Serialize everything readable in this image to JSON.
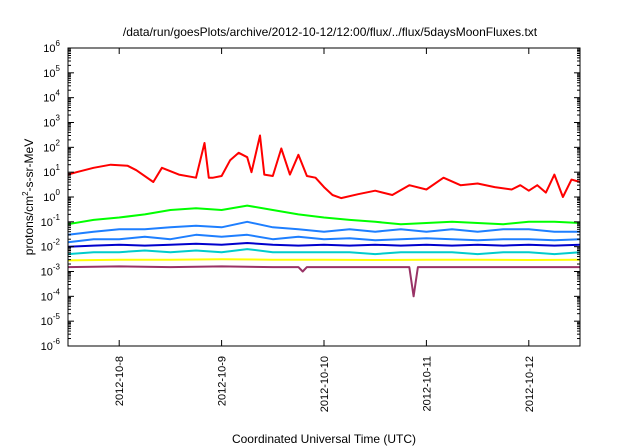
{
  "chart_data": {
    "type": "line",
    "title": "/data/run/goesPlots/archive/2012-10-12/12:00/flux/../flux/5daysMoonFluxes.txt",
    "xlabel": "Coordinated Universal Time (UTC)",
    "ylabel": {
      "base1": "protons/cm",
      "sup1": "2",
      "base2": "-s-sr-MeV"
    },
    "y_scale": "log",
    "ylim": [
      1e-06,
      1000000.0
    ],
    "y_ticks": [
      {
        "value": 1e-06,
        "base": "10",
        "exp": "-6"
      },
      {
        "value": 1e-05,
        "base": "10",
        "exp": "-5"
      },
      {
        "value": 0.0001,
        "base": "10",
        "exp": "-4"
      },
      {
        "value": 0.001,
        "base": "10",
        "exp": "-3"
      },
      {
        "value": 0.01,
        "base": "10",
        "exp": "-2"
      },
      {
        "value": 0.1,
        "base": "10",
        "exp": "-1"
      },
      {
        "value": 1.0,
        "base": "10",
        "exp": "0"
      },
      {
        "value": 10.0,
        "base": "10",
        "exp": "1"
      },
      {
        "value": 100.0,
        "base": "10",
        "exp": "2"
      },
      {
        "value": 1000.0,
        "base": "10",
        "exp": "3"
      },
      {
        "value": 10000.0,
        "base": "10",
        "exp": "4"
      },
      {
        "value": 100000.0,
        "base": "10",
        "exp": "5"
      },
      {
        "value": 1000000.0,
        "base": "10",
        "exp": "6"
      }
    ],
    "xlim": [
      "2012-10-07 12:00",
      "2012-10-12 12:00"
    ],
    "x_ticks": [
      {
        "value": "2012-10-08",
        "label": "2012-10-8"
      },
      {
        "value": "2012-10-09",
        "label": "2012-10-9"
      },
      {
        "value": "2012-10-10",
        "label": "2012-10-10"
      },
      {
        "value": "2012-10-11",
        "label": "2012-10-11"
      },
      {
        "value": "2012-10-12",
        "label": "2012-10-12"
      }
    ],
    "grid": false,
    "legend": "none",
    "series": [
      {
        "color": "#ff0000",
        "width": 2,
        "x": [
          "2012-10-07 12:00",
          "2012-10-07 14:00",
          "2012-10-07 18:00",
          "2012-10-07 22:00",
          "2012-10-08 02:00",
          "2012-10-08 04:00",
          "2012-10-08 08:00",
          "2012-10-08 10:00",
          "2012-10-08 14:00",
          "2012-10-08 18:00",
          "2012-10-08 20:00",
          "2012-10-08 21:00",
          "2012-10-08 22:00",
          "2012-10-09 00:00",
          "2012-10-09 02:00",
          "2012-10-09 04:00",
          "2012-10-09 06:00",
          "2012-10-09 07:00",
          "2012-10-09 09:00",
          "2012-10-09 10:00",
          "2012-10-09 12:00",
          "2012-10-09 14:00",
          "2012-10-09 16:00",
          "2012-10-09 18:00",
          "2012-10-09 20:00",
          "2012-10-09 22:00",
          "2012-10-10 00:00",
          "2012-10-10 02:00",
          "2012-10-10 04:00",
          "2012-10-10 08:00",
          "2012-10-10 12:00",
          "2012-10-10 16:00",
          "2012-10-10 20:00",
          "2012-10-11 00:00",
          "2012-10-11 04:00",
          "2012-10-11 08:00",
          "2012-10-11 12:00",
          "2012-10-11 16:00",
          "2012-10-11 20:00",
          "2012-10-11 22:00",
          "2012-10-12 00:00",
          "2012-10-12 02:00",
          "2012-10-12 04:00",
          "2012-10-12 06:00",
          "2012-10-12 08:00",
          "2012-10-12 10:00",
          "2012-10-12 12:00"
        ],
        "y": [
          8,
          10,
          15,
          20,
          18,
          12,
          4,
          15,
          8,
          6,
          150,
          6,
          6,
          7,
          30,
          60,
          40,
          10,
          300,
          8,
          7,
          90,
          8,
          50,
          7,
          6,
          2.5,
          1.2,
          0.9,
          1.3,
          1.8,
          1.2,
          3,
          2,
          6,
          3,
          3.5,
          2.5,
          2,
          3,
          1.8,
          3,
          1.5,
          8,
          1,
          5,
          4
        ]
      },
      {
        "color": "#00ff00",
        "width": 2,
        "x": [
          "2012-10-07 12:00",
          "2012-10-07 18:00",
          "2012-10-08 00:00",
          "2012-10-08 06:00",
          "2012-10-08 12:00",
          "2012-10-08 18:00",
          "2012-10-09 00:00",
          "2012-10-09 06:00",
          "2012-10-09 12:00",
          "2012-10-09 18:00",
          "2012-10-10 00:00",
          "2012-10-10 06:00",
          "2012-10-10 12:00",
          "2012-10-10 18:00",
          "2012-10-11 00:00",
          "2012-10-11 06:00",
          "2012-10-11 12:00",
          "2012-10-11 18:00",
          "2012-10-12 00:00",
          "2012-10-12 06:00",
          "2012-10-12 12:00"
        ],
        "y": [
          0.08,
          0.12,
          0.15,
          0.2,
          0.3,
          0.35,
          0.3,
          0.45,
          0.3,
          0.2,
          0.15,
          0.12,
          0.1,
          0.08,
          0.09,
          0.1,
          0.09,
          0.08,
          0.1,
          0.1,
          0.09
        ]
      },
      {
        "color": "#1e7fff",
        "width": 2,
        "x": [
          "2012-10-07 12:00",
          "2012-10-07 18:00",
          "2012-10-08 00:00",
          "2012-10-08 06:00",
          "2012-10-08 12:00",
          "2012-10-08 18:00",
          "2012-10-09 00:00",
          "2012-10-09 06:00",
          "2012-10-09 12:00",
          "2012-10-09 18:00",
          "2012-10-10 00:00",
          "2012-10-10 06:00",
          "2012-10-10 12:00",
          "2012-10-10 18:00",
          "2012-10-11 00:00",
          "2012-10-11 06:00",
          "2012-10-11 12:00",
          "2012-10-11 18:00",
          "2012-10-12 00:00",
          "2012-10-12 06:00",
          "2012-10-12 12:00"
        ],
        "y": [
          0.03,
          0.04,
          0.05,
          0.05,
          0.06,
          0.07,
          0.06,
          0.1,
          0.06,
          0.05,
          0.04,
          0.05,
          0.04,
          0.05,
          0.04,
          0.05,
          0.04,
          0.05,
          0.05,
          0.04,
          0.04
        ]
      },
      {
        "color": "#1e7fff",
        "width": 2,
        "x": [
          "2012-10-07 12:00",
          "2012-10-07 18:00",
          "2012-10-08 00:00",
          "2012-10-08 06:00",
          "2012-10-08 12:00",
          "2012-10-08 18:00",
          "2012-10-09 00:00",
          "2012-10-09 06:00",
          "2012-10-09 12:00",
          "2012-10-09 18:00",
          "2012-10-10 00:00",
          "2012-10-10 06:00",
          "2012-10-10 12:00",
          "2012-10-10 18:00",
          "2012-10-11 00:00",
          "2012-10-11 06:00",
          "2012-10-11 12:00",
          "2012-10-11 18:00",
          "2012-10-12 00:00",
          "2012-10-12 06:00",
          "2012-10-12 12:00"
        ],
        "y": [
          0.015,
          0.02,
          0.02,
          0.025,
          0.02,
          0.03,
          0.025,
          0.03,
          0.02,
          0.025,
          0.02,
          0.022,
          0.018,
          0.02,
          0.022,
          0.02,
          0.018,
          0.02,
          0.02,
          0.018,
          0.02
        ]
      },
      {
        "color": "#0000cc",
        "width": 2,
        "x": [
          "2012-10-07 12:00",
          "2012-10-07 18:00",
          "2012-10-08 00:00",
          "2012-10-08 06:00",
          "2012-10-08 12:00",
          "2012-10-08 18:00",
          "2012-10-09 00:00",
          "2012-10-09 06:00",
          "2012-10-09 12:00",
          "2012-10-09 18:00",
          "2012-10-10 00:00",
          "2012-10-10 06:00",
          "2012-10-10 12:00",
          "2012-10-10 18:00",
          "2012-10-11 00:00",
          "2012-10-11 06:00",
          "2012-10-11 12:00",
          "2012-10-11 18:00",
          "2012-10-12 00:00",
          "2012-10-12 06:00",
          "2012-10-12 12:00"
        ],
        "y": [
          0.01,
          0.011,
          0.012,
          0.011,
          0.012,
          0.013,
          0.012,
          0.014,
          0.012,
          0.011,
          0.012,
          0.011,
          0.012,
          0.011,
          0.012,
          0.011,
          0.012,
          0.011,
          0.012,
          0.011,
          0.012
        ]
      },
      {
        "color": "#00cccc",
        "width": 2,
        "x": [
          "2012-10-07 12:00",
          "2012-10-07 18:00",
          "2012-10-08 00:00",
          "2012-10-08 06:00",
          "2012-10-08 12:00",
          "2012-10-08 18:00",
          "2012-10-09 00:00",
          "2012-10-09 06:00",
          "2012-10-09 12:00",
          "2012-10-09 18:00",
          "2012-10-10 00:00",
          "2012-10-10 06:00",
          "2012-10-10 12:00",
          "2012-10-10 18:00",
          "2012-10-11 00:00",
          "2012-10-11 06:00",
          "2012-10-11 12:00",
          "2012-10-11 18:00",
          "2012-10-12 00:00",
          "2012-10-12 06:00",
          "2012-10-12 12:00"
        ],
        "y": [
          0.005,
          0.006,
          0.006,
          0.007,
          0.006,
          0.007,
          0.006,
          0.008,
          0.006,
          0.006,
          0.006,
          0.006,
          0.005,
          0.006,
          0.006,
          0.006,
          0.005,
          0.006,
          0.006,
          0.005,
          0.006
        ]
      },
      {
        "color": "#ffff00",
        "width": 2,
        "x": [
          "2012-10-07 12:00",
          "2012-10-08 00:00",
          "2012-10-08 12:00",
          "2012-10-09 00:00",
          "2012-10-09 12:00",
          "2012-10-10 00:00",
          "2012-10-10 12:00",
          "2012-10-11 00:00",
          "2012-10-11 12:00",
          "2012-10-12 00:00",
          "2012-10-12 12:00"
        ],
        "y": [
          0.0028,
          0.003,
          0.003,
          0.0031,
          0.003,
          0.003,
          0.0029,
          0.003,
          0.003,
          0.0029,
          0.003
        ]
      },
      {
        "color": "#993366",
        "width": 2,
        "x": [
          "2012-10-07 12:00",
          "2012-10-08 00:00",
          "2012-10-08 12:00",
          "2012-10-09 00:00",
          "2012-10-09 12:00",
          "2012-10-09 18:00",
          "2012-10-09 19:00",
          "2012-10-09 20:00",
          "2012-10-10 00:00",
          "2012-10-10 12:00",
          "2012-10-10 20:00",
          "2012-10-10 21:00",
          "2012-10-10 22:00",
          "2012-10-11 00:00",
          "2012-10-11 12:00",
          "2012-10-12 00:00",
          "2012-10-12 12:00"
        ],
        "y": [
          0.0015,
          0.0016,
          0.0015,
          0.0016,
          0.0015,
          0.0015,
          0.001,
          0.0015,
          0.0015,
          0.0015,
          0.0015,
          0.0001,
          0.0015,
          0.0015,
          0.0015,
          0.0015,
          0.0015
        ]
      }
    ]
  }
}
